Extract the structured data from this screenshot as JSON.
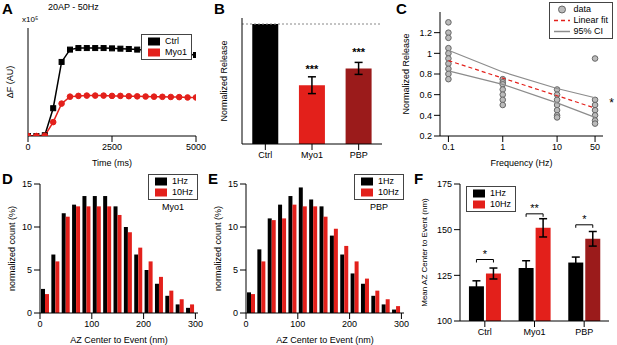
{
  "chart_data": [
    {
      "type": "line",
      "title": "A",
      "x_label": "Time (ms)",
      "y_label": "ΔF (AU)",
      "annotations": [
        "20AP - 50Hz",
        "x10⁵"
      ],
      "x": [
        0,
        250,
        500,
        750,
        1000,
        1250,
        1500,
        1750,
        2000,
        2250,
        2500,
        2750,
        3000,
        3250,
        3500,
        3750,
        4000,
        4250,
        4500,
        4750,
        5000
      ],
      "series": [
        {
          "name": "Ctrl",
          "color": "#000000",
          "marker": "square",
          "values": [
            0,
            0,
            0.05,
            1.8,
            4.8,
            5.6,
            5.7,
            5.7,
            5.7,
            5.7,
            5.68,
            5.66,
            5.64,
            5.6,
            5.55,
            5.5,
            5.45,
            5.4,
            5.35,
            5.3,
            5.25
          ]
        },
        {
          "name": "Myo1",
          "color": "#e3201b",
          "marker": "circle",
          "values": [
            0,
            0,
            0.02,
            0.9,
            2.1,
            2.55,
            2.6,
            2.62,
            2.62,
            2.62,
            2.6,
            2.6,
            2.58,
            2.57,
            2.56,
            2.55,
            2.54,
            2.53,
            2.52,
            2.5,
            2.5
          ]
        }
      ],
      "xlim": [
        0,
        5000
      ],
      "xticks": [
        0,
        2500,
        5000
      ],
      "ylim": [
        0,
        7
      ],
      "yticks": [
        0,
        2,
        4,
        6
      ],
      "tick_labels": "x",
      "legend": "upper right"
    },
    {
      "type": "bar",
      "title": "B",
      "y_label": "Normalized Release",
      "categories": [
        "Ctrl",
        "Myo1",
        "PBP"
      ],
      "values": [
        1,
        0.49,
        0.63
      ],
      "errors": [
        0,
        0.07,
        0.05
      ],
      "colors": [
        "#000000",
        "#e3201b",
        "#9b1b1b"
      ],
      "annotations": [
        null,
        "***",
        "***"
      ],
      "reference_line": 1,
      "ylim": [
        0,
        1.05
      ],
      "yticks": [
        0,
        0.5,
        1
      ],
      "tick_labels": "x"
    },
    {
      "type": "scatter",
      "title": "C",
      "x_label": "Frequency (Hz)",
      "y_label": "Normalized Release",
      "log": "x",
      "annotations": [
        "*"
      ],
      "series": [
        {
          "name": "data",
          "type": "scatter",
          "color": "#bbbbbb",
          "marker": "circle",
          "x": [
            0.1,
            0.1,
            0.1,
            0.1,
            0.1,
            0.1,
            0.1,
            0.1,
            0.1,
            0.1,
            1,
            1,
            1,
            1,
            1,
            1,
            1,
            10,
            10,
            10,
            10,
            10,
            10,
            10,
            50,
            50,
            50,
            50,
            50,
            50,
            50
          ],
          "values": [
            1.3,
            1.2,
            1.15,
            1.05,
            1.0,
            0.95,
            0.9,
            0.85,
            0.8,
            0.75,
            0.75,
            0.72,
            0.7,
            0.65,
            0.6,
            0.55,
            0.5,
            0.65,
            0.6,
            0.55,
            0.5,
            0.45,
            0.4,
            0.38,
            0.95,
            0.55,
            0.5,
            0.45,
            0.4,
            0.35,
            0.32
          ]
        },
        {
          "name": "Linear fit",
          "type": "line",
          "color": "#e3201b",
          "line_style": "dashed",
          "x": [
            0.1,
            1,
            10,
            50
          ],
          "values": [
            0.93,
            0.76,
            0.59,
            0.47
          ]
        },
        {
          "name": "95% CI",
          "type": "line",
          "color": "#8c8c8c",
          "line_style": "solid",
          "x": [
            0.1,
            1,
            10,
            50
          ],
          "upper": [
            1.03,
            0.82,
            0.66,
            0.57
          ],
          "lower": [
            0.83,
            0.7,
            0.52,
            0.38
          ]
        }
      ],
      "xlim": [
        0.07,
        70
      ],
      "xticks": [
        0.1,
        1,
        10,
        50
      ],
      "ylim": [
        0.2,
        1.4
      ],
      "yticks": [
        0.2,
        0.4,
        0.6,
        0.8,
        1,
        1.2
      ],
      "legend": "upper right"
    },
    {
      "type": "histogram",
      "title": "D",
      "subtitle": "Myo1",
      "x_label": "AZ Center to Event (nm)",
      "y_label": "normalized count (%)",
      "bins": [
        0,
        20,
        40,
        60,
        80,
        100,
        120,
        140,
        160,
        180,
        200,
        220,
        240,
        260,
        280,
        300
      ],
      "series": [
        {
          "name": "1Hz",
          "color": "#000000",
          "values": [
            2.8,
            6.8,
            11.6,
            12.6,
            13.6,
            13.6,
            13.6,
            12.4,
            10.0,
            6.8,
            5.0,
            3.4,
            2.0,
            1.0,
            0.6
          ]
        },
        {
          "name": "10Hz",
          "color": "#e3201b",
          "values": [
            2.2,
            6.0,
            11.2,
            12.4,
            12.4,
            12.4,
            12.4,
            11.4,
            9.4,
            7.6,
            6.0,
            4.2,
            2.6,
            1.6,
            1.0
          ]
        }
      ],
      "xlim": [
        0,
        305
      ],
      "xticks": [
        0,
        100,
        200,
        300
      ],
      "ylim": [
        0,
        15
      ],
      "yticks": [
        0,
        5,
        10,
        15
      ],
      "legend": "upper right"
    },
    {
      "type": "histogram",
      "title": "E",
      "subtitle": "PBP",
      "x_label": "AZ Center to Event (nm)",
      "y_label": "normalized count (%)",
      "bins": [
        0,
        20,
        40,
        60,
        80,
        100,
        120,
        140,
        160,
        180,
        200,
        220,
        240,
        260,
        280,
        300
      ],
      "series": [
        {
          "name": "1Hz",
          "color": "#000000",
          "values": [
            2.4,
            7.4,
            11.0,
            12.6,
            13.6,
            14.6,
            13.2,
            12.4,
            9.0,
            6.8,
            4.6,
            3.4,
            2.0,
            1.0,
            0.4
          ]
        },
        {
          "name": "10Hz",
          "color": "#e3201b",
          "values": [
            2.2,
            6.0,
            10.8,
            11.0,
            12.6,
            12.4,
            12.4,
            11.2,
            9.8,
            7.8,
            6.0,
            4.0,
            2.6,
            1.6,
            0.8
          ]
        }
      ],
      "xlim": [
        0,
        305
      ],
      "xticks": [
        0,
        100,
        200,
        300
      ],
      "ylim": [
        0,
        15
      ],
      "yticks": [
        0,
        5,
        10,
        15
      ],
      "legend": "upper right"
    },
    {
      "type": "bar",
      "title": "F",
      "y_label": "Mean AZ Center to Event (nm)",
      "categories": [
        "Ctrl",
        "Myo1",
        "PBP"
      ],
      "series": [
        {
          "name": "1Hz",
          "color": "#000000",
          "values": [
            119,
            129,
            132
          ],
          "errors": [
            3,
            4,
            3
          ]
        },
        {
          "name": "10Hz",
          "colors": [
            "#e3201b",
            "#e3201b",
            "#9b1b1b"
          ],
          "values": [
            126,
            151,
            145
          ],
          "errors": [
            3,
            5,
            4
          ]
        }
      ],
      "annotations": [
        "*",
        "**",
        "*"
      ],
      "ylim": [
        100,
        175
      ],
      "yticks": [
        100,
        125,
        150,
        175
      ],
      "legend": "upper left"
    }
  ]
}
